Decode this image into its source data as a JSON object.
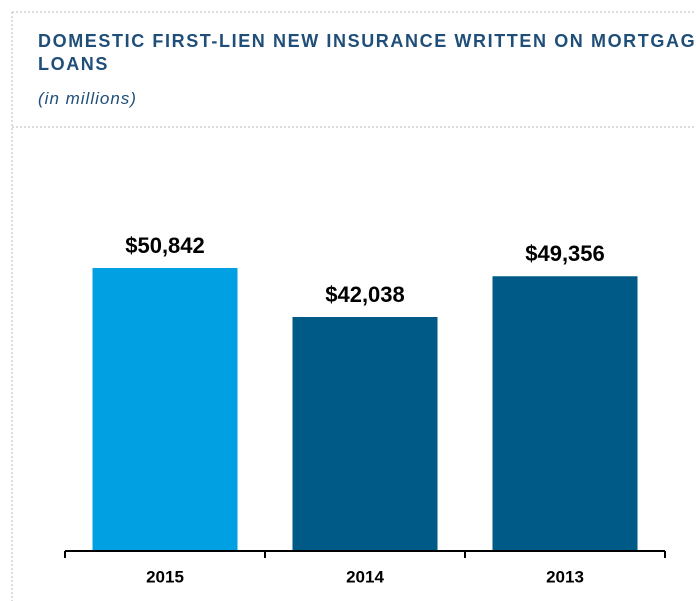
{
  "chart_data": {
    "type": "bar",
    "title": "DOMESTIC FIRST-LIEN NEW INSURANCE WRITTEN ON MORTGAGE LOANS",
    "subtitle": "(in millions)",
    "categories": [
      "2015",
      "2014",
      "2013"
    ],
    "values": [
      50842,
      42038,
      49356
    ],
    "value_labels": [
      "$50,842",
      "$42,038",
      "$49,356"
    ],
    "colors": [
      "#00a0e2",
      "#005a87",
      "#005a87"
    ],
    "ylim": [
      0,
      60000
    ]
  }
}
